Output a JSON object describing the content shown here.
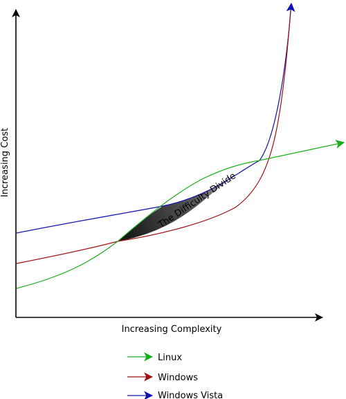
{
  "chart_data": {
    "type": "line",
    "xlabel": "Increasing Complexity",
    "ylabel": "Increasing Cost",
    "annotation": "The Difficulty Divide",
    "axes": {
      "ticks": false,
      "arrows": true
    },
    "legend": {
      "placement": "bottom-center",
      "entries": [
        {
          "label": "Linux",
          "color": "#1aad1a"
        },
        {
          "label": "Windows",
          "color": "#a01010"
        },
        {
          "label": "Windows Vista",
          "color": "#1010b0"
        }
      ]
    },
    "series": [
      {
        "name": "Linux",
        "color": "#1aad1a",
        "shape": "rising, overtakes others in the middle and continues upward past the axis end"
      },
      {
        "name": "Windows",
        "color": "#a01010",
        "shape": "gentle rise then sharp exponential climb"
      },
      {
        "name": "Windows Vista",
        "color": "#1010b0",
        "shape": "starts highest, flatter rise then sharp exponential climb"
      }
    ]
  }
}
